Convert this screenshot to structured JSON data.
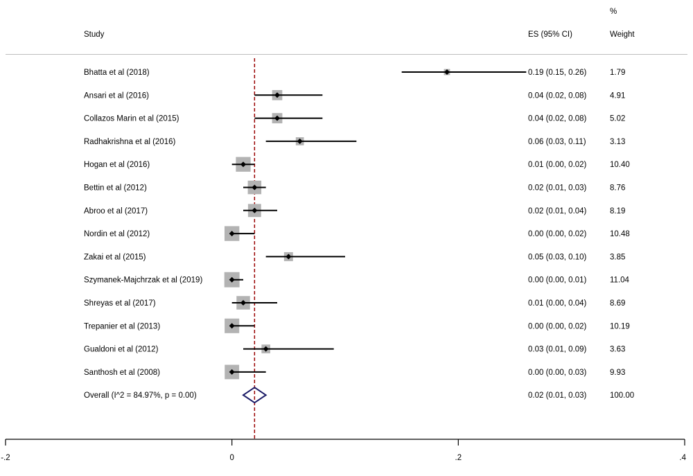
{
  "chart_data": {
    "type": "forest",
    "columns": {
      "study": "Study",
      "es": "ES (95% CI)",
      "weight_top": "%",
      "weight": "Weight"
    },
    "studies": [
      {
        "label": "Bhatta et al (2018)",
        "es": 0.19,
        "lo": 0.15,
        "hi": 0.26,
        "ci_text": "0.19 (0.15, 0.26)",
        "weight_text": "1.79",
        "weight": 1.79
      },
      {
        "label": "Ansari et al (2016)",
        "es": 0.04,
        "lo": 0.02,
        "hi": 0.08,
        "ci_text": "0.04 (0.02, 0.08)",
        "weight_text": "4.91",
        "weight": 4.91
      },
      {
        "label": "Collazos Marin et al (2015)",
        "es": 0.04,
        "lo": 0.02,
        "hi": 0.08,
        "ci_text": "0.04 (0.02, 0.08)",
        "weight_text": "5.02",
        "weight": 5.02
      },
      {
        "label": "Radhakrishna et al (2016)",
        "es": 0.06,
        "lo": 0.03,
        "hi": 0.11,
        "ci_text": "0.06 (0.03, 0.11)",
        "weight_text": "3.13",
        "weight": 3.13
      },
      {
        "label": "Hogan et al (2016)",
        "es": 0.01,
        "lo": 0.0,
        "hi": 0.02,
        "ci_text": "0.01 (0.00, 0.02)",
        "weight_text": "10.40",
        "weight": 10.4
      },
      {
        "label": "Bettin et al (2012)",
        "es": 0.02,
        "lo": 0.01,
        "hi": 0.03,
        "ci_text": "0.02 (0.01, 0.03)",
        "weight_text": "8.76",
        "weight": 8.76
      },
      {
        "label": "Abroo et al (2017)",
        "es": 0.02,
        "lo": 0.01,
        "hi": 0.04,
        "ci_text": "0.02 (0.01, 0.04)",
        "weight_text": "8.19",
        "weight": 8.19
      },
      {
        "label": "Nordin et al (2012)",
        "es": 0.0,
        "lo": 0.0,
        "hi": 0.02,
        "ci_text": "0.00 (0.00, 0.02)",
        "weight_text": "10.48",
        "weight": 10.48
      },
      {
        "label": "Zakai et al (2015)",
        "es": 0.05,
        "lo": 0.03,
        "hi": 0.1,
        "ci_text": "0.05 (0.03, 0.10)",
        "weight_text": "3.85",
        "weight": 3.85
      },
      {
        "label": "Szymanek-Majchrzak et al (2019)",
        "es": 0.0,
        "lo": 0.0,
        "hi": 0.01,
        "ci_text": "0.00 (0.00, 0.01)",
        "weight_text": "11.04",
        "weight": 11.04
      },
      {
        "label": "Shreyas et al (2017)",
        "es": 0.01,
        "lo": 0.0,
        "hi": 0.04,
        "ci_text": "0.01 (0.00, 0.04)",
        "weight_text": "8.69",
        "weight": 8.69
      },
      {
        "label": "Trepanier et al (2013)",
        "es": 0.0,
        "lo": 0.0,
        "hi": 0.02,
        "ci_text": "0.00 (0.00, 0.02)",
        "weight_text": "10.19",
        "weight": 10.19
      },
      {
        "label": "Gualdoni et al (2012)",
        "es": 0.03,
        "lo": 0.01,
        "hi": 0.09,
        "ci_text": "0.03 (0.01, 0.09)",
        "weight_text": "3.63",
        "weight": 3.63
      },
      {
        "label": "Santhosh et al (2008)",
        "es": 0.0,
        "lo": 0.0,
        "hi": 0.03,
        "ci_text": "0.00 (0.00, 0.03)",
        "weight_text": "9.93",
        "weight": 9.93
      }
    ],
    "overall": {
      "label": "Overall  (I^2 = 84.97%, p = 0.00)",
      "es": 0.02,
      "lo": 0.01,
      "hi": 0.03,
      "ci_text": "0.02 (0.01, 0.03)",
      "weight_text": "100.00"
    },
    "xaxis": {
      "range": [
        -0.2,
        0.4
      ],
      "ticks": [
        -0.2,
        0,
        0.2,
        0.4
      ],
      "tick_labels": [
        "-.2",
        "0",
        ".2",
        ".4"
      ]
    },
    "colors": {
      "box": "#b3b3b3",
      "point": "#000000",
      "ci_line": "#000000",
      "overall_diamond": "#1a1a66",
      "pooled_line": "#990000",
      "separator": "#bdbdbd"
    }
  }
}
